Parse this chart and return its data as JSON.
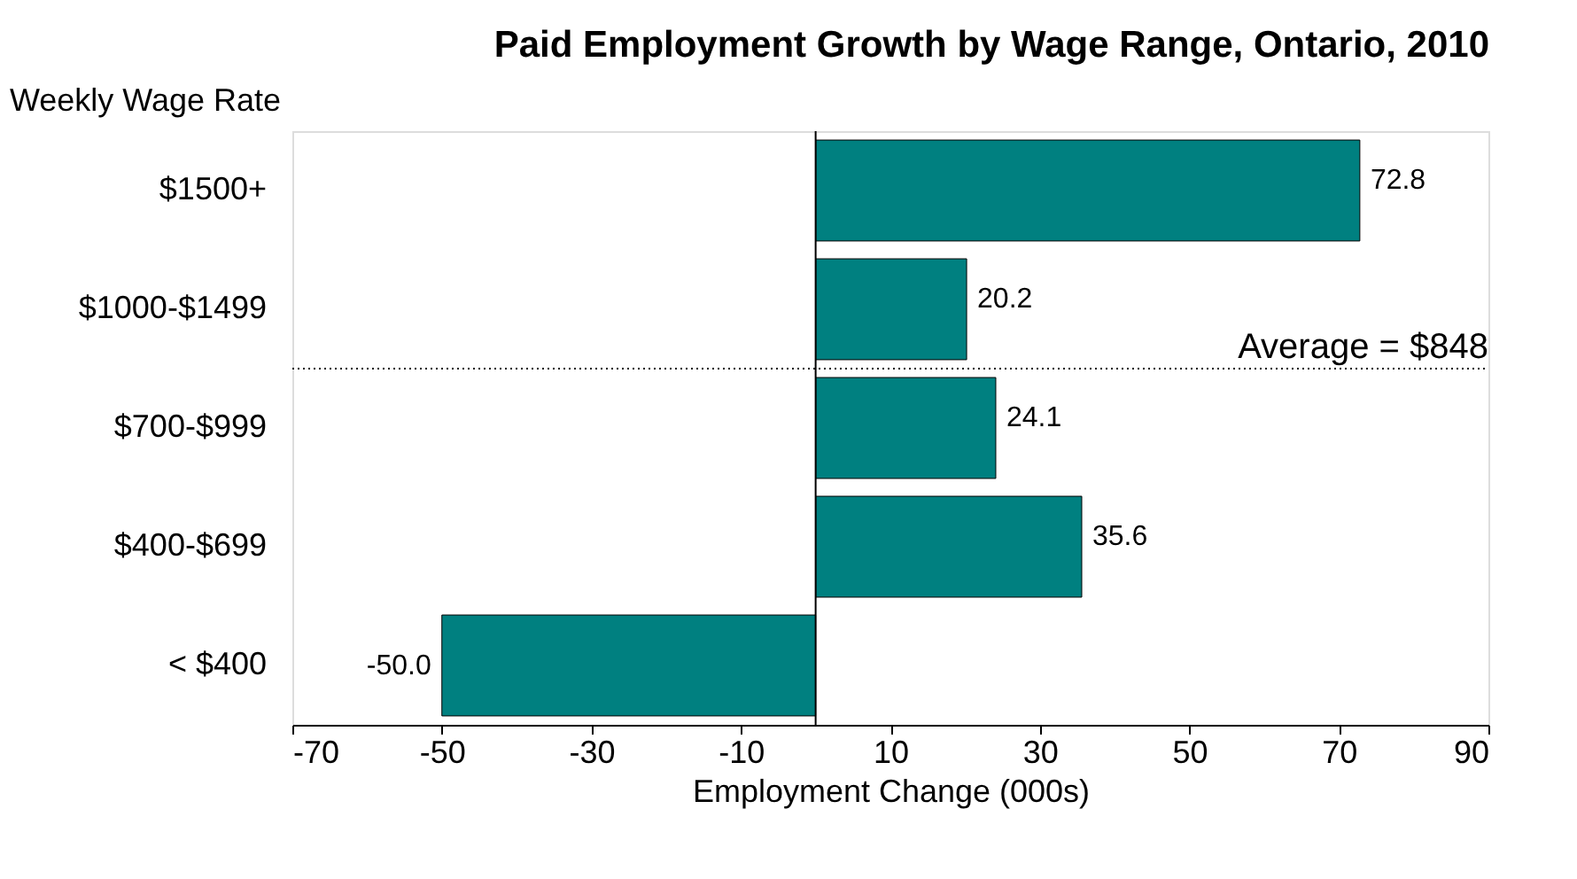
{
  "chart_data": {
    "type": "bar",
    "orientation": "horizontal",
    "title": "Paid Employment Growth by Wage Range, Ontario, 2010",
    "xlabel": "Employment Change (000s)",
    "ylabel": "Weekly Wage Rate",
    "categories": [
      "$1500+",
      "$1000-$1499",
      "$700-$999",
      "$400-$699",
      "< $400"
    ],
    "values": [
      72.8,
      20.2,
      24.1,
      35.6,
      -50.0
    ],
    "value_labels": [
      "72.8",
      "20.2",
      "24.1",
      "35.6",
      "-50.0"
    ],
    "color": "#008080",
    "xlim": [
      -70,
      90
    ],
    "xticks": [
      -70,
      -50,
      -30,
      -10,
      10,
      30,
      50,
      70,
      90
    ],
    "annotations": [
      "Average = $848"
    ],
    "grid": false
  }
}
